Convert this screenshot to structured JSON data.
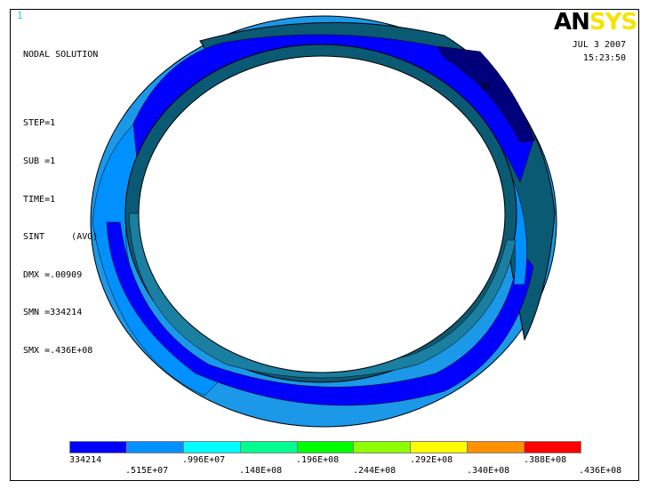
{
  "window_number": "1",
  "info": {
    "title": "NODAL SOLUTION",
    "step": "STEP=1",
    "sub": "SUB =1",
    "time": "TIME=1",
    "result": "SINT     (AVG)",
    "dmx": "DMX =.00909",
    "smn": "SMN =334214",
    "smx": "SMX =.436E+08"
  },
  "logo": {
    "part1": "AN",
    "part2": "SYS"
  },
  "date": {
    "day": "JUL  3 2007",
    "time": "15:23:50"
  },
  "markers": {
    "mx": "MX"
  },
  "colors": {
    "background": "#ffffff",
    "band_min": "#0000ff",
    "band_2": "#0090ff",
    "band_3": "#00ffff",
    "band_4": "#00ff90",
    "band_5": "#00ff00",
    "band_6": "#90ff00",
    "band_7": "#ffff00",
    "band_8": "#ff9000",
    "band_max": "#ff0000",
    "surface_dark": "#0b5a74",
    "deep_blue": "#00007a"
  },
  "legend": {
    "swatches": [
      "#0000ff",
      "#0090ff",
      "#00ffff",
      "#00ff90",
      "#00ff00",
      "#90ff00",
      "#ffff00",
      "#ff9000",
      "#ff0000"
    ],
    "lower_labels": [
      "334214",
      ".996E+07",
      ".196E+08",
      ".292E+08",
      ".388E+08"
    ],
    "upper_labels": [
      ".515E+07",
      ".148E+08",
      ".244E+08",
      ".340E+08",
      ".436E+08"
    ]
  }
}
